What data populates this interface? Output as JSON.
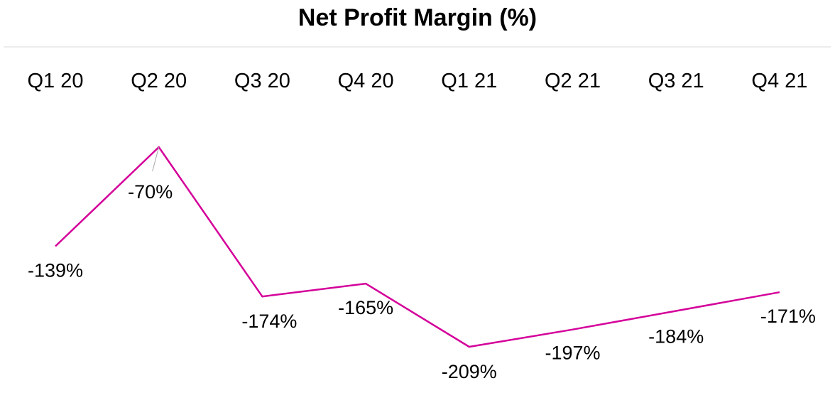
{
  "chart_data": {
    "type": "line",
    "title": "Net Profit Margin (%)",
    "categories": [
      "Q1 20",
      "Q2 20",
      "Q3 20",
      "Q4 20",
      "Q1 21",
      "Q2 21",
      "Q3 21",
      "Q4 21"
    ],
    "series": [
      {
        "values": [
          -139,
          -70,
          -174,
          -165,
          -209,
          -197,
          -184,
          -171
        ],
        "labels": [
          "-139%",
          "-70%",
          "-174%",
          "-165%",
          "-209%",
          "-197%",
          "-184%",
          "-171%"
        ],
        "color": "#d4009a"
      }
    ],
    "xlabel": "",
    "ylabel": "",
    "category_axis_position": "top",
    "grid": false,
    "legend": "none"
  },
  "colors": {
    "line": "#d4009a",
    "title_rule": "#d9d9d9",
    "leader_line": "#a6a6a6"
  }
}
